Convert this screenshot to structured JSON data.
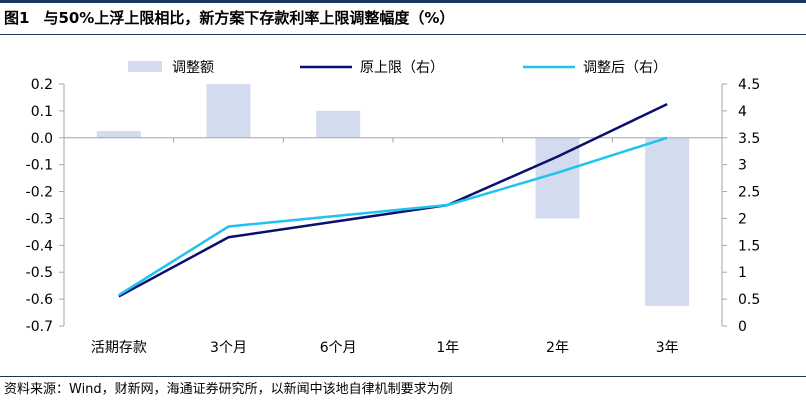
{
  "figure": {
    "label": "图1",
    "title": "与50%上浮上限相比，新方案下存款利率上限调整幅度（%）",
    "source": "资料来源：Wind，财新网，海通证券研究所，以新闻中该地自律机制要求为例"
  },
  "colors": {
    "bar": "#d3dcef",
    "original_line": "#0b0f6e",
    "adjusted_line": "#1fc3ee",
    "axis": "#a6a6a6"
  },
  "chart_data": {
    "type": "bar+line",
    "categories": [
      "活期存款",
      "3个月",
      "6个月",
      "1年",
      "2年",
      "3年"
    ],
    "legend": [
      "调整额",
      "原上限（右）",
      "调整后（右）"
    ],
    "legend_position": "top",
    "bars": {
      "name": "调整额",
      "axis": "left",
      "values": [
        0.025,
        0.2,
        0.1,
        0,
        -0.3,
        -0.625
      ]
    },
    "lines": [
      {
        "name": "原上限（右）",
        "axis": "right",
        "values": [
          0.55,
          1.65,
          1.95,
          2.25,
          3.15,
          4.125
        ]
      },
      {
        "name": "调整后（右）",
        "axis": "right",
        "values": [
          0.575,
          1.85,
          2.05,
          2.25,
          2.85,
          3.5
        ]
      }
    ],
    "y_left": {
      "min": -0.7,
      "max": 0.2,
      "step": 0.1,
      "tick_labels": [
        "0.2",
        "0.1",
        "0.0",
        "-0.1",
        "-0.2",
        "-0.3",
        "-0.4",
        "-0.5",
        "-0.6",
        "-0.7"
      ]
    },
    "y_right": {
      "min": 0,
      "max": 4.5,
      "step": 0.5,
      "tick_labels": [
        "4.5",
        "4",
        "3.5",
        "3",
        "2.5",
        "2",
        "1.5",
        "1",
        "0.5",
        "0"
      ]
    },
    "grid": false
  }
}
